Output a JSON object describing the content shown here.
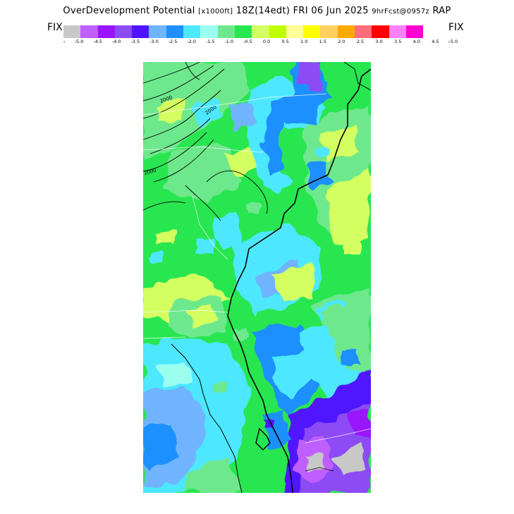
{
  "header": {
    "product": "OverDevelopment Potential",
    "units": "[x1000ft]",
    "valid": "18Z(14edt) FRI 06 Jun 2025",
    "forecast": "9hrFcst@0957z",
    "model": "RAP"
  },
  "legend": {
    "left_label": "FIX",
    "right_label": "FIX",
    "left_arrow": "‹",
    "right_arrow": "›",
    "colors": [
      "#c8c8c8",
      "#bf5fff",
      "#9a14ff",
      "#8c4cf4",
      "#4f14ff",
      "#6fb4ff",
      "#1e90ff",
      "#4ee8ff",
      "#9bfff0",
      "#6ee88c",
      "#28e650",
      "#d4ff60",
      "#c0ff00",
      "#ffff9a",
      "#ffff00",
      "#ffd060",
      "#ffaa00",
      "#ff6e78",
      "#ff0000",
      "#ff80ff",
      "#ff00d2"
    ],
    "ticks": [
      "-5.0",
      "-4.5",
      "-4.0",
      "-3.5",
      "-3.0",
      "-2.5",
      "-2.0",
      "-1.5",
      "-1.0",
      "-0.5",
      "0.0",
      "0.5",
      "1.0",
      "1.5",
      "2.0",
      "2.5",
      "3.0",
      "3.5",
      "4.0",
      "4.5",
      "5.0"
    ]
  },
  "map": {
    "region": "Southeast US coast",
    "contour_labels": [
      "2000",
      "2000",
      "2000"
    ]
  }
}
